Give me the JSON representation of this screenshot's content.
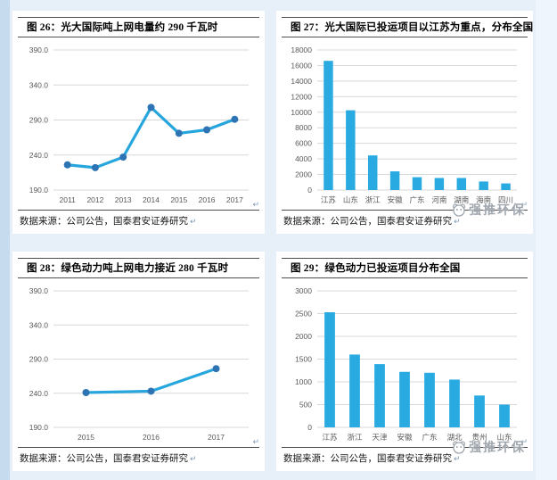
{
  "marks": {
    "pilcrow": "↵"
  },
  "watermark": {
    "text": "强推环保"
  },
  "colors": {
    "line": "#27A6DD",
    "marker": "#2E74B5",
    "bar": "#29ABE2",
    "grid": "#D8D8D8",
    "axis_text": "#595959",
    "rule": "#4d4d4d",
    "page_bg": "#E7F0F9",
    "left_strip": "#C7DBEF",
    "watermark_gray": "#9FA6AE"
  },
  "panels": [
    {
      "title": "图 26：光大国际吨上网电量约 290 千瓦时",
      "source": "数据来源：公司公告，国泰君安证券研究",
      "has_watermark": false
    },
    {
      "title": "图 27：光大国际已投运项目以江苏为重点，分布全国",
      "source": "数据来源：公司公告，国泰君安证券研究",
      "has_watermark": true
    },
    {
      "title": "图 28：绿色动力吨上网电力接近 280 千瓦时",
      "source": "数据来源：公司公告，国泰君安证券研究",
      "has_watermark": false
    },
    {
      "title": "图 29：绿色动力已投运项目分布全国",
      "source": "数据来源：公司公告，国泰君安证券研究",
      "has_watermark": true
    }
  ],
  "chart_data": [
    {
      "type": "line",
      "title": "图 26：光大国际吨上网电量约 290 千瓦时",
      "categories": [
        "2011",
        "2012",
        "2013",
        "2014",
        "2015",
        "2016",
        "2017"
      ],
      "values": [
        226,
        222,
        237,
        308,
        271,
        276,
        291
      ],
      "xlabel": "",
      "ylabel": "",
      "ylim": [
        190,
        390
      ],
      "ytick_step": 50,
      "ytick_decimals": 1,
      "grid": true,
      "legend": "none"
    },
    {
      "type": "bar",
      "title": "图 27：光大国际已投运项目以江苏为重点，分布全国",
      "categories": [
        "江苏",
        "山东",
        "浙江",
        "安徽",
        "广东",
        "河南",
        "湖南",
        "海南",
        "四川"
      ],
      "values": [
        16600,
        10250,
        4450,
        2400,
        1650,
        1550,
        1550,
        1100,
        850
      ],
      "xlabel": "",
      "ylabel": "",
      "ylim": [
        0,
        18000
      ],
      "ytick_step": 2000,
      "ytick_decimals": 0,
      "grid": true,
      "legend": "none"
    },
    {
      "type": "line",
      "title": "图 28：绿色动力吨上网电力接近 280 千瓦时",
      "categories": [
        "2015",
        "2016",
        "2017"
      ],
      "values": [
        241,
        243,
        276
      ],
      "xlabel": "",
      "ylabel": "",
      "ylim": [
        190,
        390
      ],
      "ytick_step": 50,
      "ytick_decimals": 1,
      "grid": true,
      "legend": "none"
    },
    {
      "type": "bar",
      "title": "图 29：绿色动力已投运项目分布全国",
      "categories": [
        "江苏",
        "浙江",
        "天津",
        "安徽",
        "广东",
        "湖北",
        "贵州",
        "山东"
      ],
      "values": [
        2530,
        1600,
        1390,
        1220,
        1200,
        1050,
        700,
        500
      ],
      "xlabel": "",
      "ylabel": "",
      "ylim": [
        0,
        3000
      ],
      "ytick_step": 500,
      "ytick_decimals": 0,
      "grid": true,
      "legend": "none"
    }
  ]
}
